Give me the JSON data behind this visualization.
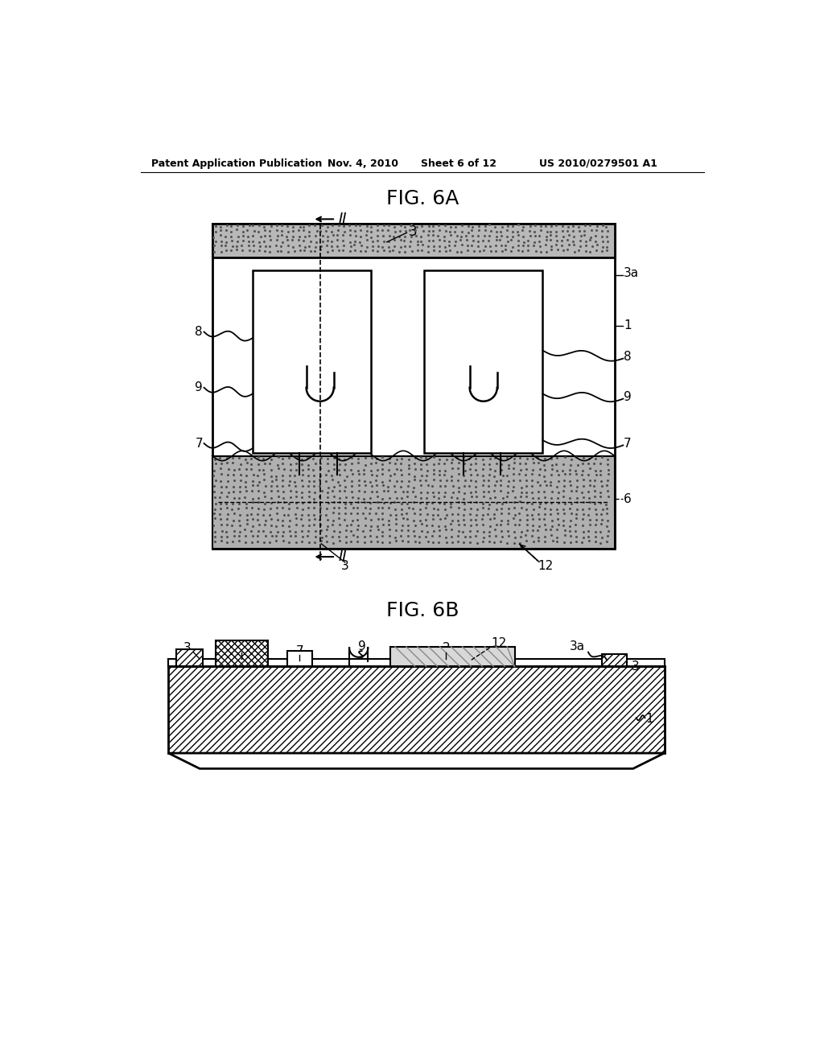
{
  "background_color": "#ffffff",
  "header_text": "Patent Application Publication",
  "header_date": "Nov. 4, 2010",
  "header_sheet": "Sheet 6 of 12",
  "header_patent": "US 2010/0279501 A1",
  "fig6a_title": "FIG. 6A",
  "fig6b_title": "FIG. 6B",
  "line_color": "#000000"
}
